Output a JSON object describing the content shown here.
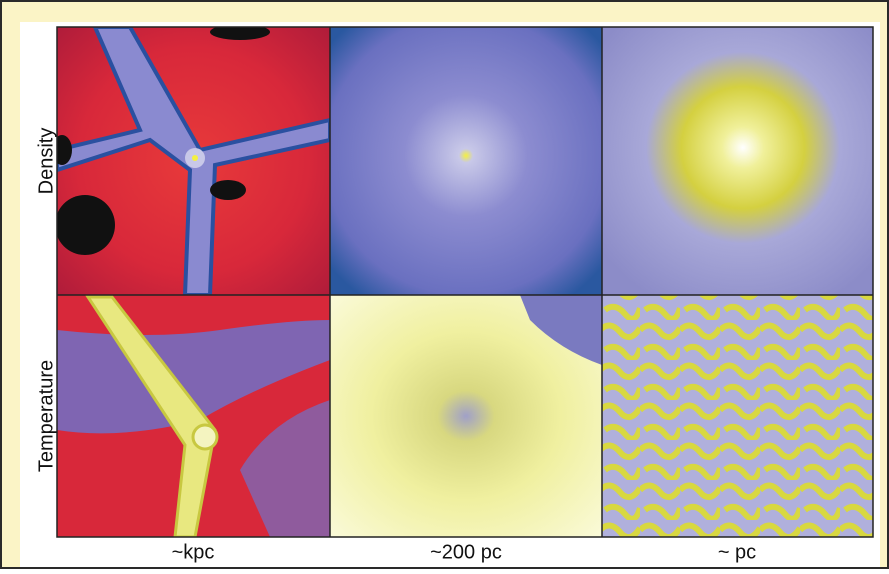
{
  "figure": {
    "rows": [
      {
        "label": "Density"
      },
      {
        "label": "Temperature"
      }
    ],
    "columns": [
      {
        "label": "~kpc"
      },
      {
        "label": "~200 pc"
      },
      {
        "label": "~ pc"
      }
    ]
  }
}
